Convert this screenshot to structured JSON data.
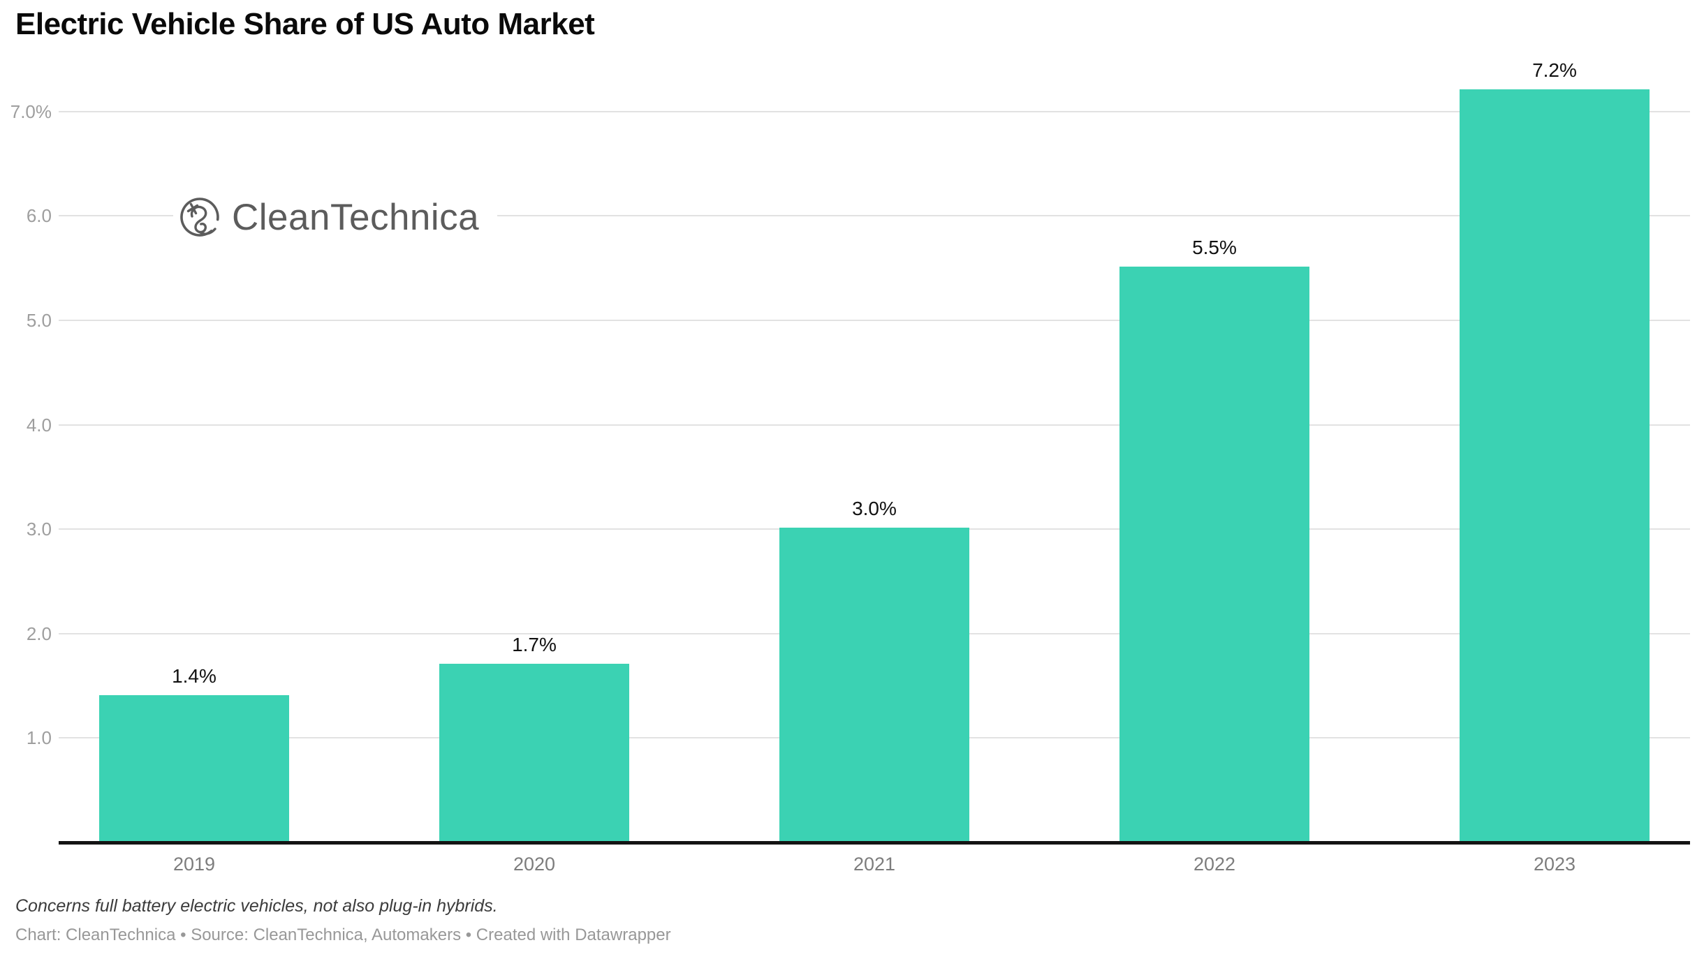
{
  "header": {
    "title": "Electric Vehicle Share of US Auto Market"
  },
  "logo": {
    "name": "CleanTechnica",
    "icon": "ev-plug-circle-icon"
  },
  "chart_data": {
    "type": "bar",
    "title": "Electric Vehicle Share of US Auto Market",
    "categories": [
      "2019",
      "2020",
      "2021",
      "2022",
      "2023"
    ],
    "values": [
      1.4,
      1.7,
      3.0,
      5.5,
      7.2
    ],
    "value_labels": [
      "1.4%",
      "1.7%",
      "3.0%",
      "5.5%",
      "7.2%"
    ],
    "xlabel": "",
    "ylabel": "",
    "ylim": [
      0,
      7.4
    ],
    "yticks": [
      {
        "value": 7.0,
        "label": "7.0%"
      },
      {
        "value": 6.0,
        "label": "6.0"
      },
      {
        "value": 5.0,
        "label": "5.0"
      },
      {
        "value": 4.0,
        "label": "4.0"
      },
      {
        "value": 3.0,
        "label": "3.0"
      },
      {
        "value": 2.0,
        "label": "2.0"
      },
      {
        "value": 1.0,
        "label": "1.0"
      }
    ],
    "grid": "horizontal",
    "legend": "none",
    "bar_color": "#3bd2b3"
  },
  "colors": {
    "accent": "#3bd2b3",
    "gridline": "#e2e2e2",
    "axis_line": "#141414",
    "y_label": "#9e9e9e",
    "x_label": "#7d7d7d",
    "value_label": "#111111",
    "logo_gray": "#5c5c5c"
  },
  "footer": {
    "note": "Concerns full battery electric vehicles, not also plug-in hybrids.",
    "byline": "Chart: CleanTechnica • Source: CleanTechnica, Automakers • Created with Datawrapper"
  }
}
